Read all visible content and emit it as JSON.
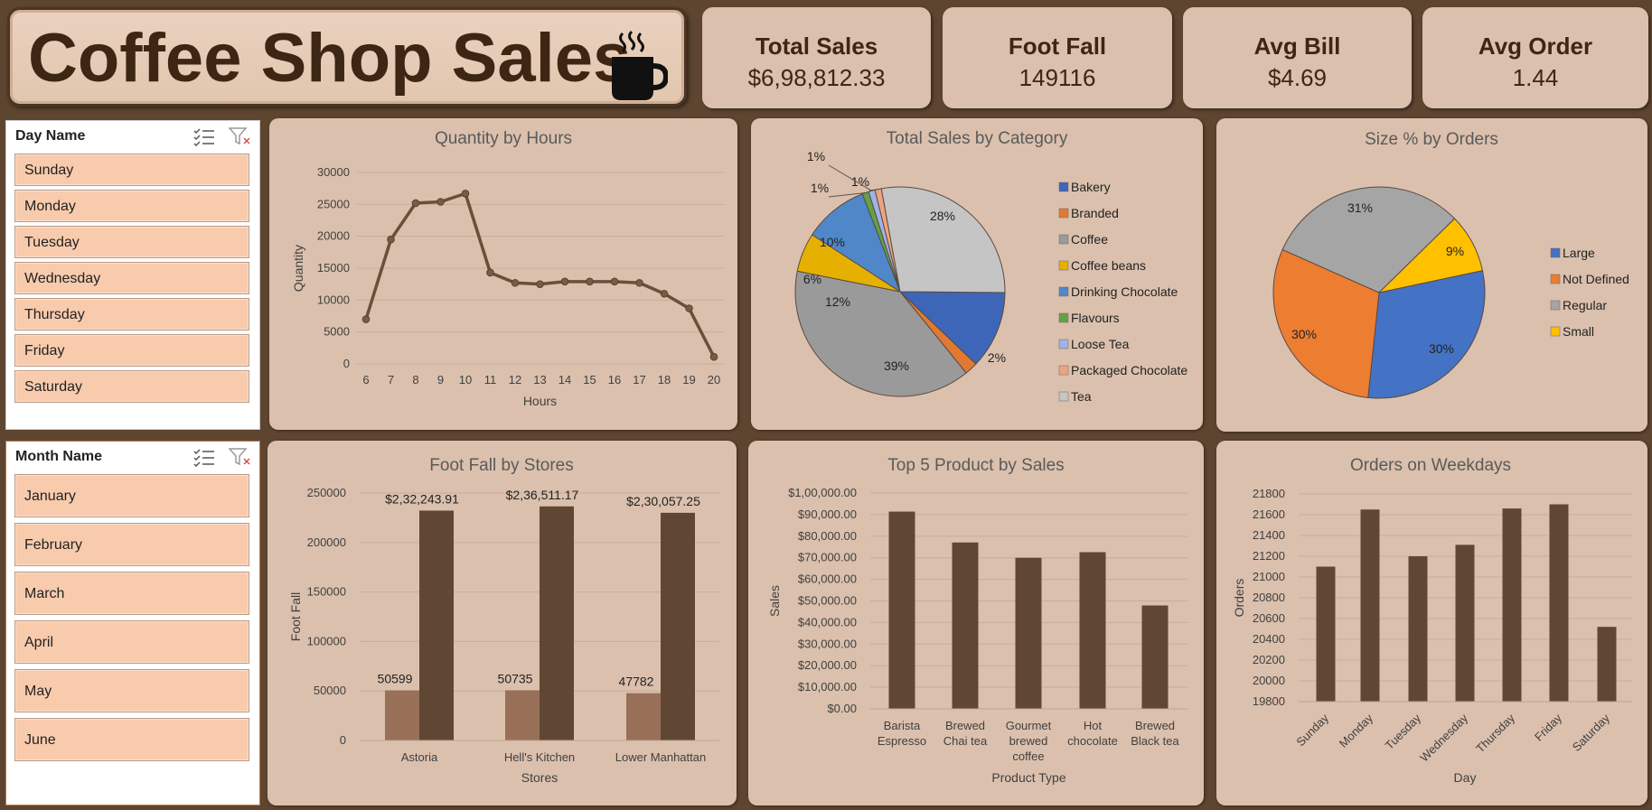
{
  "header": {
    "title": "Coffee Shop Sales",
    "icon": "coffee-cup-icon"
  },
  "kpis": [
    {
      "label": "Total Sales",
      "value": "$6,98,812.33"
    },
    {
      "label": "Foot Fall",
      "value": "149116"
    },
    {
      "label": "Avg Bill",
      "value": "$4.69"
    },
    {
      "label": "Avg Order",
      "value": "1.44"
    }
  ],
  "slicers": {
    "day": {
      "title": "Day Name",
      "items": [
        "Sunday",
        "Monday",
        "Tuesday",
        "Wednesday",
        "Thursday",
        "Friday",
        "Saturday"
      ]
    },
    "month": {
      "title": "Month Name",
      "items": [
        "January",
        "February",
        "March",
        "April",
        "May",
        "June"
      ]
    }
  },
  "colors": {
    "brown_dark": "#604733",
    "brown_light": "#977057",
    "panel": "#dbc0ad",
    "line": "#6b4f3a"
  },
  "chart_data": [
    {
      "type": "line",
      "title": "Quantity by Hours",
      "xlabel": "Hours",
      "ylabel": "Quantity",
      "x": [
        6,
        7,
        8,
        9,
        10,
        11,
        12,
        13,
        14,
        15,
        16,
        17,
        18,
        19,
        20
      ],
      "values": [
        7000,
        19500,
        25200,
        25400,
        26700,
        14300,
        12700,
        12500,
        12900,
        12900,
        12900,
        12700,
        11000,
        8700,
        1100
      ],
      "ylim": [
        0,
        30000
      ],
      "yticks": [
        "0",
        "5000",
        "10000",
        "15000",
        "20000",
        "25000",
        "30000"
      ]
    },
    {
      "type": "pie",
      "title": "Total Sales  by Category",
      "categories": [
        "Bakery",
        "Branded",
        "Coffee",
        "Coffee beans",
        "Drinking Chocolate",
        "Flavours",
        "Loose Tea",
        "Packaged Chocolate",
        "Tea"
      ],
      "values": [
        12,
        2,
        39,
        6,
        10,
        1,
        1,
        1,
        28
      ],
      "labels": [
        "12%",
        "2%",
        "39%",
        "6%",
        "10%",
        "1%",
        "1%",
        "1%",
        "28%"
      ],
      "colors": [
        "#3e66b8",
        "#e07a33",
        "#9a9a9a",
        "#e6b000",
        "#4f87c8",
        "#64a047",
        "#9fb3e6",
        "#eca581",
        "#c5c5c5"
      ]
    },
    {
      "type": "pie",
      "title": "Size %  by Orders",
      "categories": [
        "Large",
        "Not Defined",
        "Regular",
        "Small"
      ],
      "values": [
        30,
        30,
        31,
        9
      ],
      "labels": [
        "30%",
        "30%",
        "31%",
        "9%"
      ],
      "colors": [
        "#4472c4",
        "#ed7d31",
        "#a5a5a5",
        "#ffc000"
      ]
    },
    {
      "type": "bar",
      "title": "Foot Fall by Stores",
      "xlabel": "Stores",
      "ylabel": "Foot Fall",
      "categories": [
        "Astoria",
        "Hell's Kitchen",
        "Lower Manhattan"
      ],
      "series": [
        {
          "values": [
            50599,
            50735,
            47782
          ],
          "labels": [
            "50599",
            "50735",
            "47782"
          ]
        },
        {
          "values": [
            232243.91,
            236511.17,
            230057.25
          ],
          "labels": [
            "$2,32,243.91",
            "$2,36,511.17",
            "$2,30,057.25"
          ]
        }
      ],
      "ylim": [
        0,
        250000
      ],
      "yticks": [
        "0",
        "50000",
        "100000",
        "150000",
        "200000",
        "250000"
      ]
    },
    {
      "type": "bar",
      "title": "Top 5 Product by Sales",
      "xlabel": "Product Type",
      "ylabel": "Sales",
      "categories": [
        "Barista Espresso",
        "Brewed Chai tea",
        "Gourmet brewed coffee",
        "Hot chocolate",
        "Brewed Black tea"
      ],
      "category_lines": [
        [
          "Barista",
          "Espresso"
        ],
        [
          "Brewed",
          "Chai tea"
        ],
        [
          "Gourmet",
          "brewed",
          "coffee"
        ],
        [
          "Hot",
          "chocolate"
        ],
        [
          "Brewed",
          "Black tea"
        ]
      ],
      "values": [
        91400,
        77100,
        70000,
        72600,
        47900
      ],
      "ylim": [
        0,
        100000
      ],
      "yticks": [
        "$0.00",
        "$10,000.00",
        "$20,000.00",
        "$30,000.00",
        "$40,000.00",
        "$50,000.00",
        "$60,000.00",
        "$70,000.00",
        "$80,000.00",
        "$90,000.00",
        "$1,00,000.00"
      ]
    },
    {
      "type": "bar",
      "title": "Orders on Weekdays",
      "xlabel": "Day",
      "ylabel": "Orders",
      "categories": [
        "Sunday",
        "Monday",
        "Tuesday",
        "Wednesday",
        "Thursday",
        "Friday",
        "Saturday"
      ],
      "values": [
        21100,
        21650,
        21200,
        21310,
        21660,
        21700,
        20520
      ],
      "ylim": [
        19800,
        21800
      ],
      "yticks": [
        "19800",
        "20000",
        "20200",
        "20400",
        "20600",
        "20800",
        "21000",
        "21200",
        "21400",
        "21600",
        "21800"
      ]
    }
  ]
}
